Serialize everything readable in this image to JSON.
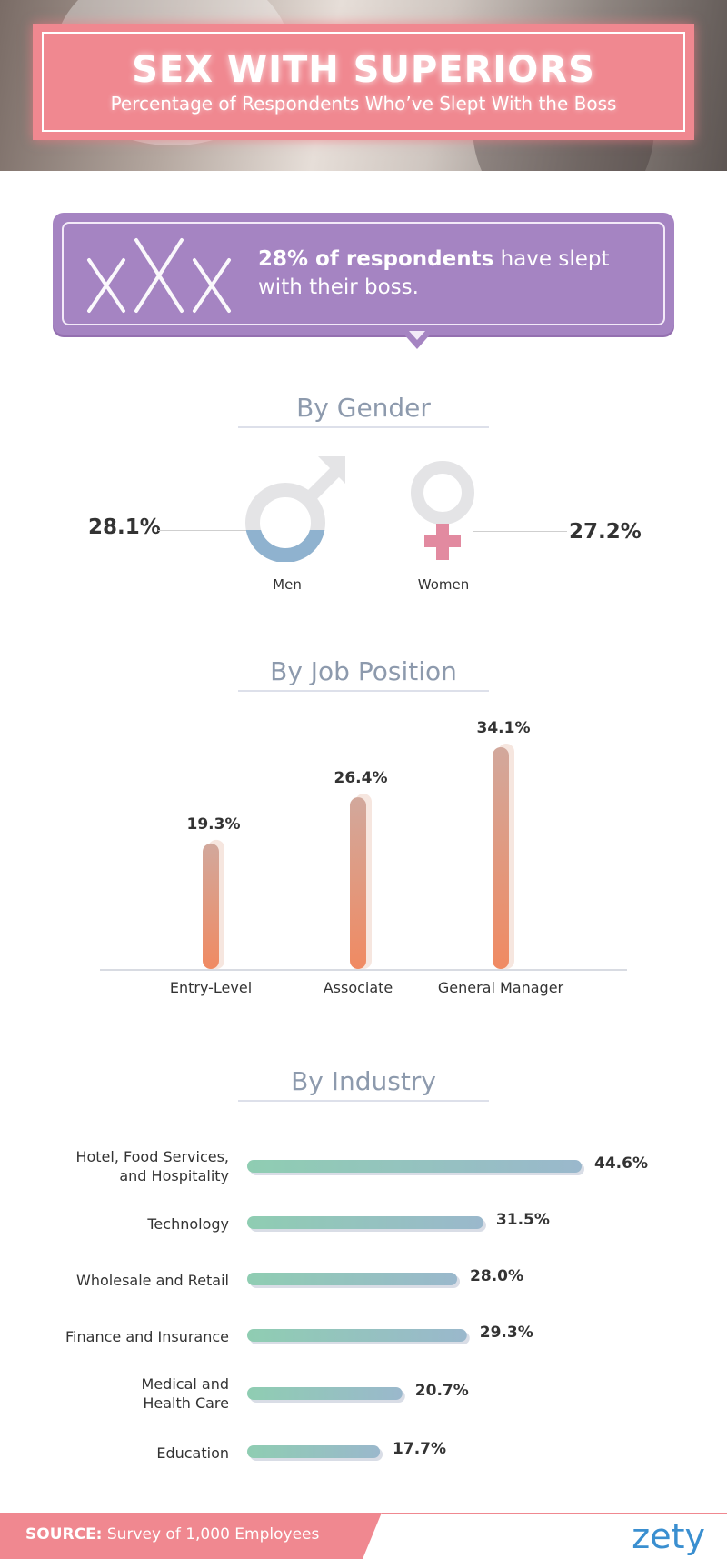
{
  "header": {
    "title": "SEX WITH SUPERIORS",
    "subtitle": "Percentage of Respondents Who’ve Slept With the Boss"
  },
  "callout": {
    "bold": "28% of respondents",
    "rest": " have slept with their boss."
  },
  "gender": {
    "heading": "By Gender",
    "men_label": "Men",
    "women_label": "Women",
    "men_value_text": "28.1%",
    "women_value_text": "27.2%"
  },
  "job": {
    "heading": "By Job Position"
  },
  "industry": {
    "heading": "By Industry"
  },
  "chart_data": [
    {
      "type": "bar",
      "title": "By Gender",
      "categories": [
        "Men",
        "Women"
      ],
      "values": [
        28.1,
        27.2
      ],
      "unit": "%"
    },
    {
      "type": "bar",
      "title": "By Job Position",
      "categories": [
        "Entry-Level",
        "Associate",
        "General Manager"
      ],
      "values": [
        19.3,
        26.4,
        34.1
      ],
      "value_labels": [
        "19.3%",
        "26.4%",
        "34.1%"
      ],
      "ylim": [
        0,
        40
      ],
      "orientation": "vertical"
    },
    {
      "type": "bar",
      "title": "By Industry",
      "categories": [
        "Hotel, Food Services, and Hospitality",
        "Technology",
        "Wholesale and Retail",
        "Finance and Insurance",
        "Medical and Health Care",
        "Education"
      ],
      "values": [
        44.6,
        31.5,
        28.0,
        29.3,
        20.7,
        17.7
      ],
      "value_labels": [
        "44.6%",
        "31.5%",
        "28.0%",
        "29.3%",
        "20.7%",
        "17.7%"
      ],
      "orientation": "horizontal"
    }
  ],
  "footer": {
    "source_label": "SOURCE:",
    "source_text": " Survey of 1,000 Employees",
    "logo": "zety"
  },
  "colors": {
    "pink": "#f08890",
    "purple": "#a584c2",
    "men_blue": "#8fb2cf",
    "women_pink": "#e28aa0",
    "bar_orange": "#ef8f66",
    "bar_tan": "#d9aa98",
    "ind_green": "#8ecdb4",
    "ind_blue": "#9cb8cc",
    "heading": "#8d9aad",
    "logo_blue": "#3a8fd0"
  }
}
